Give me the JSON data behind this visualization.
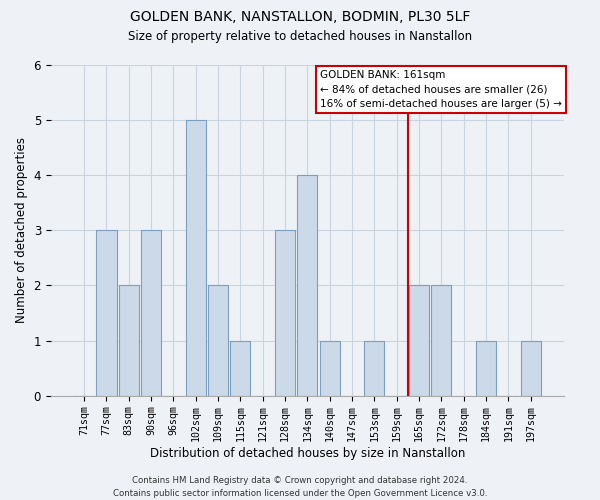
{
  "title": "GOLDEN BANK, NANSTALLON, BODMIN, PL30 5LF",
  "subtitle": "Size of property relative to detached houses in Nanstallon",
  "xlabel": "Distribution of detached houses by size in Nanstallon",
  "ylabel": "Number of detached properties",
  "bar_labels": [
    "71sqm",
    "77sqm",
    "83sqm",
    "90sqm",
    "96sqm",
    "102sqm",
    "109sqm",
    "115sqm",
    "121sqm",
    "128sqm",
    "134sqm",
    "140sqm",
    "147sqm",
    "153sqm",
    "159sqm",
    "165sqm",
    "172sqm",
    "178sqm",
    "184sqm",
    "191sqm",
    "197sqm"
  ],
  "bar_values": [
    0,
    3,
    2,
    3,
    0,
    5,
    2,
    1,
    0,
    3,
    4,
    1,
    0,
    1,
    0,
    2,
    2,
    0,
    1,
    0,
    1
  ],
  "bar_color": "#ccd9e8",
  "bar_edge_color": "#7a9fc0",
  "grid_color": "#c8d4e0",
  "background_color": "#eef2f7",
  "plot_bg_color": "#eef2f7",
  "ylim": [
    0,
    6
  ],
  "yticks": [
    0,
    1,
    2,
    3,
    4,
    5,
    6
  ],
  "annotation_title": "GOLDEN BANK: 161sqm",
  "annotation_line1": "← 84% of detached houses are smaller (26)",
  "annotation_line2": "16% of semi-detached houses are larger (5) →",
  "red_line_x": 14.5,
  "annotation_box_color": "#ffffff",
  "annotation_border_color": "#cc0000",
  "red_line_color": "#cc0000",
  "footer_line1": "Contains HM Land Registry data © Crown copyright and database right 2024.",
  "footer_line2": "Contains public sector information licensed under the Open Government Licence v3.0."
}
